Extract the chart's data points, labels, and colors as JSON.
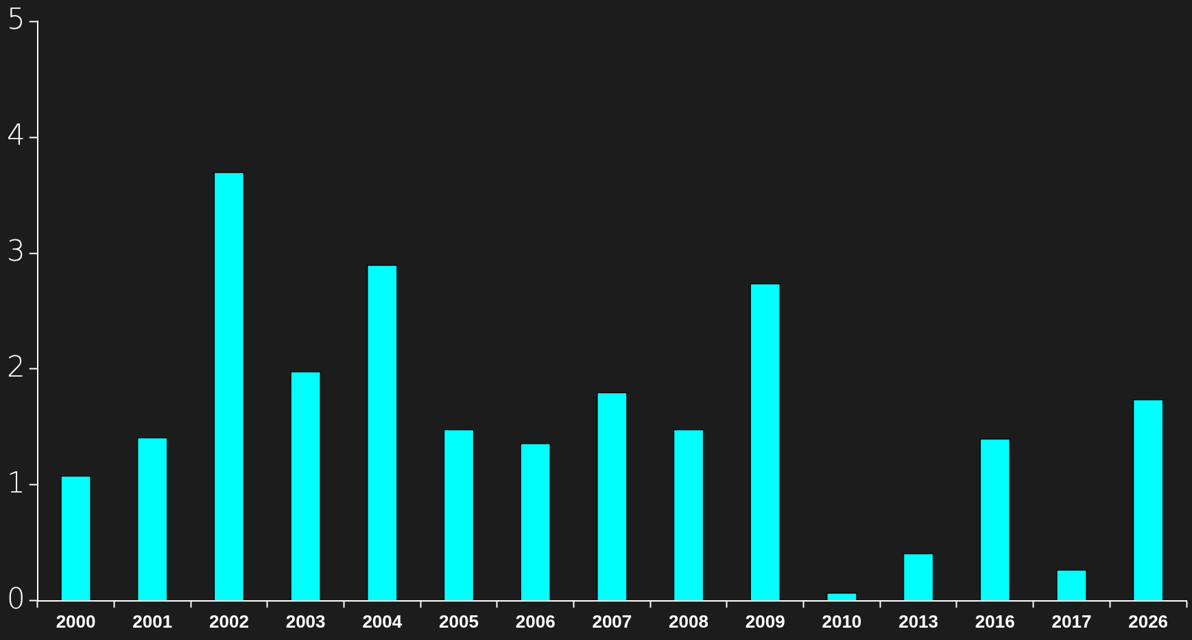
{
  "chart_data": {
    "type": "bar",
    "categories": [
      "2000",
      "2001",
      "2002",
      "2003",
      "2004",
      "2005",
      "2006",
      "2007",
      "2008",
      "2009",
      "2010",
      "2013",
      "2016",
      "2017",
      "2026"
    ],
    "values": [
      1.08,
      1.41,
      3.7,
      1.98,
      2.9,
      1.48,
      1.36,
      1.8,
      1.48,
      2.74,
      0.07,
      0.41,
      1.4,
      0.27,
      1.74
    ],
    "color": "#00ffff",
    "ylim": [
      0,
      5
    ],
    "yticks": [
      0,
      1,
      2,
      3,
      4,
      5
    ],
    "grid": false,
    "legend": false
  }
}
